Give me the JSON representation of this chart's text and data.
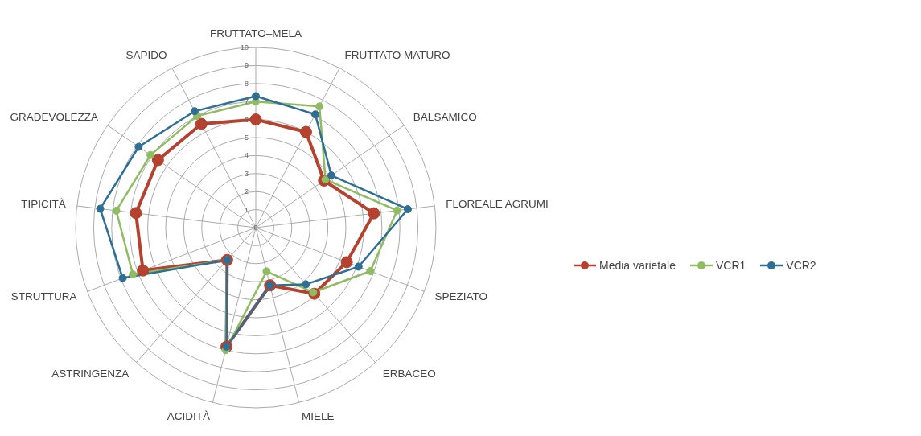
{
  "chart_data": {
    "type": "radar",
    "categories": [
      "FRUTTATO–MELA",
      "FRUTTATO MATURO",
      "BALSAMICO",
      "FLOREALE AGRUMI",
      "SPEZIATO",
      "ERBACEO",
      "MIELE",
      "ACIDITÀ",
      "ASTRINGENZA",
      "STRUTTURA",
      "TIPICITÀ",
      "GRADEVOLEZZA",
      "SAPIDO"
    ],
    "series": [
      {
        "name": "Media varietale",
        "color": "#b5412f",
        "values": [
          6.0,
          6.0,
          4.6,
          6.6,
          5.4,
          4.9,
          3.3,
          6.8,
          2.4,
          6.7,
          6.7,
          6.6,
          6.5
        ]
      },
      {
        "name": "VCR1",
        "color": "#8fbb62",
        "values": [
          7.0,
          7.6,
          4.7,
          7.9,
          6.8,
          4.8,
          2.5,
          7.0,
          2.4,
          7.3,
          7.8,
          7.1,
          7.0
        ]
      },
      {
        "name": "VCR2",
        "color": "#2f6f95",
        "values": [
          7.3,
          7.1,
          5.1,
          8.5,
          6.1,
          4.2,
          3.3,
          6.8,
          2.4,
          7.9,
          8.7,
          7.9,
          7.3
        ]
      }
    ],
    "ylim": [
      0,
      10
    ],
    "yticks": [
      0,
      1,
      2,
      3,
      4,
      5,
      6,
      7,
      8,
      9,
      10
    ],
    "grid": true,
    "legend": "right",
    "marker": "circle"
  }
}
